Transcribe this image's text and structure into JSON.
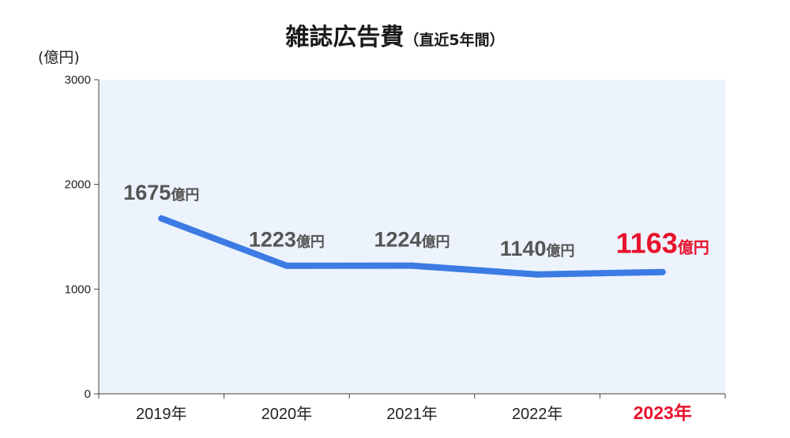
{
  "chart_data": {
    "type": "line",
    "title": "雑誌広告費",
    "subtitle": "（直近5年間）",
    "ylabel": "(億円)",
    "ylim": [
      0,
      3000
    ],
    "yticks": [
      0,
      1000,
      2000,
      3000
    ],
    "categories": [
      "2019年",
      "2020年",
      "2021年",
      "2022年",
      "2023年"
    ],
    "series": [
      {
        "values": [
          1675,
          1223,
          1224,
          1140,
          1163
        ]
      }
    ],
    "data_labels": [
      "1675",
      "1223",
      "1224",
      "1140",
      "1163"
    ],
    "data_label_unit": "億円",
    "highlight_index": 4,
    "grid": false,
    "colors": {
      "line": "#3b7be3",
      "plot_bg": "#edf3fc",
      "label": "#555555",
      "highlight": "#e8122d",
      "axis": "#444444"
    }
  }
}
